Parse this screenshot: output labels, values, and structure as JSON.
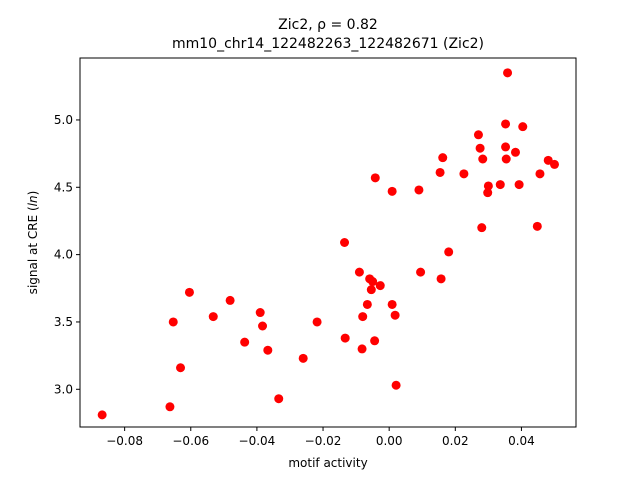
{
  "chart_data": {
    "type": "scatter",
    "title_line1": "Zic2, ρ = 0.82",
    "title_line2": "mm10_chr14_122482263_122482671 (Zic2)",
    "xlabel": "motif activity",
    "ylabel_prefix": "signal at CRE (",
    "ylabel_italic": "ln",
    "ylabel_suffix": ")",
    "xlim": [
      -0.0935,
      0.0565
    ],
    "ylim": [
      2.72,
      5.46
    ],
    "xticks": [
      -0.08,
      -0.06,
      -0.04,
      -0.02,
      0.0,
      0.02,
      0.04
    ],
    "xtick_labels": [
      "−0.08",
      "−0.06",
      "−0.04",
      "−0.02",
      "0.00",
      "0.02",
      "0.04"
    ],
    "yticks": [
      3.0,
      3.5,
      4.0,
      4.5,
      5.0
    ],
    "ytick_labels": [
      "3.0",
      "3.5",
      "4.0",
      "4.5",
      "5.0"
    ],
    "marker_color": "#ff0000",
    "grid": false,
    "points": [
      {
        "x": -0.0868,
        "y": 2.81
      },
      {
        "x": -0.0663,
        "y": 2.87
      },
      {
        "x": -0.0653,
        "y": 3.5
      },
      {
        "x": -0.0631,
        "y": 3.16
      },
      {
        "x": -0.0604,
        "y": 3.72
      },
      {
        "x": -0.0532,
        "y": 3.54
      },
      {
        "x": -0.0481,
        "y": 3.66
      },
      {
        "x": -0.0437,
        "y": 3.35
      },
      {
        "x": -0.039,
        "y": 3.57
      },
      {
        "x": -0.0383,
        "y": 3.47
      },
      {
        "x": -0.0367,
        "y": 3.29
      },
      {
        "x": -0.0334,
        "y": 2.93
      },
      {
        "x": -0.026,
        "y": 3.23
      },
      {
        "x": -0.0218,
        "y": 3.5
      },
      {
        "x": -0.0135,
        "y": 4.09
      },
      {
        "x": -0.0133,
        "y": 3.38
      },
      {
        "x": -0.009,
        "y": 3.87
      },
      {
        "x": -0.0082,
        "y": 3.3
      },
      {
        "x": -0.008,
        "y": 3.54
      },
      {
        "x": -0.0066,
        "y": 3.63
      },
      {
        "x": -0.0059,
        "y": 3.82
      },
      {
        "x": -0.0054,
        "y": 3.74
      },
      {
        "x": -0.005,
        "y": 3.8
      },
      {
        "x": -0.0044,
        "y": 3.36
      },
      {
        "x": -0.0042,
        "y": 4.57
      },
      {
        "x": -0.0027,
        "y": 3.77
      },
      {
        "x": 0.0009,
        "y": 4.47
      },
      {
        "x": 0.0009,
        "y": 3.63
      },
      {
        "x": 0.0018,
        "y": 3.55
      },
      {
        "x": 0.0021,
        "y": 3.03
      },
      {
        "x": 0.009,
        "y": 4.48
      },
      {
        "x": 0.0095,
        "y": 3.87
      },
      {
        "x": 0.0154,
        "y": 4.61
      },
      {
        "x": 0.0157,
        "y": 3.82
      },
      {
        "x": 0.0162,
        "y": 4.72
      },
      {
        "x": 0.018,
        "y": 4.02
      },
      {
        "x": 0.0226,
        "y": 4.6
      },
      {
        "x": 0.027,
        "y": 4.89
      },
      {
        "x": 0.0275,
        "y": 4.79
      },
      {
        "x": 0.028,
        "y": 4.2
      },
      {
        "x": 0.0283,
        "y": 4.71
      },
      {
        "x": 0.0298,
        "y": 4.46
      },
      {
        "x": 0.03,
        "y": 4.51
      },
      {
        "x": 0.0336,
        "y": 4.52
      },
      {
        "x": 0.0352,
        "y": 4.97
      },
      {
        "x": 0.0352,
        "y": 4.8
      },
      {
        "x": 0.0354,
        "y": 4.71
      },
      {
        "x": 0.0358,
        "y": 5.35
      },
      {
        "x": 0.0382,
        "y": 4.76
      },
      {
        "x": 0.0393,
        "y": 4.52
      },
      {
        "x": 0.0404,
        "y": 4.95
      },
      {
        "x": 0.0448,
        "y": 4.21
      },
      {
        "x": 0.0456,
        "y": 4.6
      },
      {
        "x": 0.0481,
        "y": 4.7
      },
      {
        "x": 0.05,
        "y": 4.67
      }
    ]
  }
}
